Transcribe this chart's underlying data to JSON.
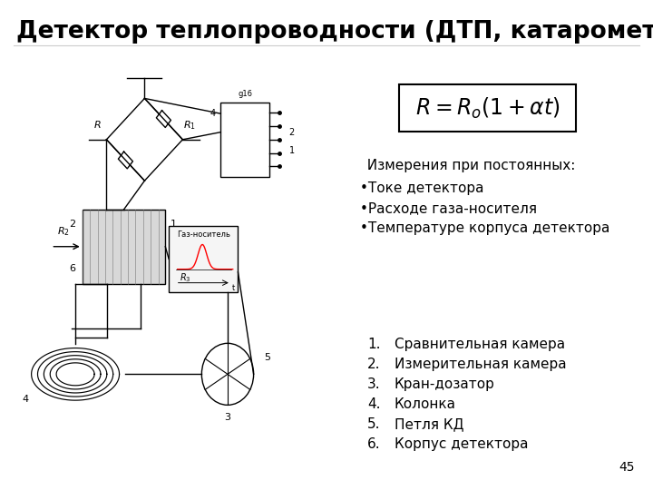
{
  "title": "Детектор теплопроводности (ДТП, катарометр)",
  "title_fontsize": 19,
  "title_fontweight": "bold",
  "formula": "$R = R_o(1+\\alpha t)$",
  "formula_fontsize": 17,
  "measurements_header": "  Измерения при постоянных:",
  "bullet_points": [
    "Токе детектора",
    "Расходе газа-носителя",
    "Температуре корпуса детектора"
  ],
  "numbered_items": [
    "Сравнительная камера",
    "Измерительная камера",
    "Кран-дозатор",
    "Колонка",
    "Петля КД",
    "Корпус детектора"
  ],
  "slide_number": "45",
  "bg_color": "#ffffff",
  "text_color": "#000000",
  "formula_box_color": "#ffffff",
  "formula_border_color": "#000000",
  "text_fontsize": 11,
  "num_fontsize": 11
}
